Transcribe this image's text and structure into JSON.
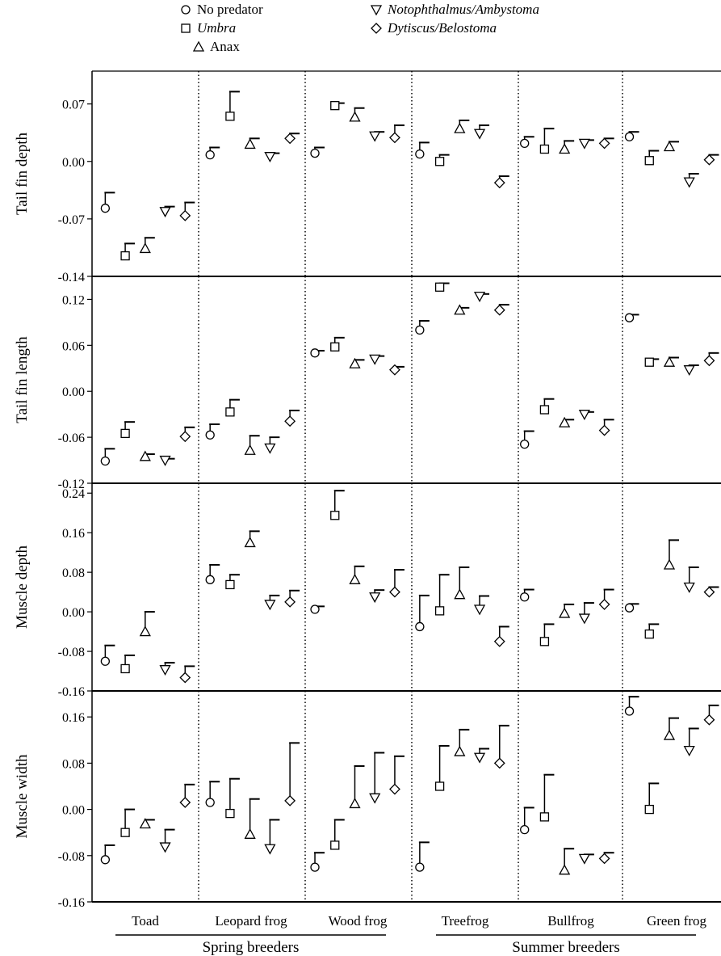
{
  "chart_data": {
    "type": "scatter",
    "legend": {
      "placement": "top-center",
      "items": [
        {
          "name": "No predator",
          "marker": "circle",
          "italic": false
        },
        {
          "name": "Umbra",
          "marker": "square",
          "italic": true
        },
        {
          "name": "Anax",
          "marker": "triangle-up",
          "italic": false
        },
        {
          "name": "Notophthalmus/Ambystoma",
          "marker": "triangle-down",
          "italic": true
        },
        {
          "name": "Dytiscus/Belostoma",
          "marker": "diamond",
          "italic": true
        }
      ]
    },
    "species": [
      "Toad",
      "Leopard frog",
      "Wood frog",
      "Treefrog",
      "Bullfrog",
      "Green frog"
    ],
    "groups": [
      {
        "label": "Spring breeders",
        "species": [
          "Toad",
          "Leopard frog",
          "Wood frog"
        ]
      },
      {
        "label": "Summer breeders",
        "species": [
          "Treefrog",
          "Bullfrog",
          "Green frog"
        ]
      }
    ],
    "error_bars": "upper",
    "grid": false,
    "panels": [
      {
        "ylabel": "Tail fin depth",
        "ylim": [
          -0.14,
          0.11
        ],
        "yticks": [
          "0.07",
          "0.00",
          "-0.07",
          "-0.14"
        ],
        "ytick_values": [
          0.07,
          0.0,
          -0.07,
          -0.14
        ],
        "values": {
          "Toad": [
            -0.057,
            -0.115,
            -0.106,
            -0.061,
            -0.066
          ],
          "Leopard frog": [
            0.008,
            0.055,
            0.021,
            0.006,
            0.028
          ],
          "Wood frog": [
            0.01,
            0.068,
            0.054,
            0.031,
            0.029
          ],
          "Treefrog": [
            0.009,
            0.0,
            0.04,
            0.034,
            -0.026
          ],
          "Bullfrog": [
            0.022,
            0.015,
            0.015,
            0.022,
            0.022
          ],
          "Green frog": [
            0.03,
            0.001,
            0.018,
            -0.025,
            0.002
          ]
        },
        "upper": {
          "Toad": [
            -0.038,
            -0.1,
            -0.093,
            -0.055,
            -0.05
          ],
          "Leopard frog": [
            0.017,
            0.085,
            0.028,
            0.01,
            0.034
          ],
          "Wood frog": [
            0.017,
            0.071,
            0.065,
            0.036,
            0.044
          ],
          "Treefrog": [
            0.023,
            0.008,
            0.05,
            0.044,
            -0.018
          ],
          "Bullfrog": [
            0.03,
            0.04,
            0.025,
            0.026,
            0.028
          ],
          "Green frog": [
            0.036,
            0.013,
            0.024,
            -0.015,
            0.008
          ]
        }
      },
      {
        "ylabel": "Tail fin length",
        "ylim": [
          -0.12,
          0.15
        ],
        "yticks": [
          "0.12",
          "0.06",
          "0.00",
          "-0.06",
          "-0.12"
        ],
        "ytick_values": [
          0.12,
          0.06,
          0.0,
          -0.06,
          -0.12
        ],
        "values": {
          "Toad": [
            -0.091,
            -0.055,
            -0.085,
            -0.09,
            -0.059
          ],
          "Leopard frog": [
            -0.057,
            -0.027,
            -0.077,
            -0.074,
            -0.039
          ],
          "Wood frog": [
            0.05,
            0.058,
            0.036,
            0.042,
            0.028
          ],
          "Treefrog": [
            0.08,
            0.136,
            0.106,
            0.124,
            0.106
          ],
          "Bullfrog": [
            -0.069,
            -0.024,
            -0.041,
            -0.03,
            -0.051
          ],
          "Green frog": [
            0.096,
            0.038,
            0.038,
            0.028,
            0.04
          ]
        },
        "upper": {
          "Toad": [
            -0.075,
            -0.04,
            -0.082,
            -0.088,
            -0.047
          ],
          "Leopard frog": [
            -0.043,
            -0.011,
            -0.058,
            -0.06,
            -0.025
          ],
          "Wood frog": [
            0.053,
            0.07,
            0.041,
            0.046,
            0.032
          ],
          "Treefrog": [
            0.092,
            0.141,
            0.109,
            0.127,
            0.113
          ],
          "Bullfrog": [
            -0.052,
            -0.01,
            -0.037,
            -0.027,
            -0.037
          ],
          "Green frog": [
            0.1,
            0.042,
            0.044,
            0.034,
            0.05
          ]
        }
      },
      {
        "ylabel": "Muscle depth",
        "ylim": [
          -0.16,
          0.26
        ],
        "yticks": [
          "0.24",
          "0.16",
          "0.08",
          "0.00",
          "-0.08",
          "-0.16"
        ],
        "ytick_values": [
          0.24,
          0.16,
          0.08,
          0.0,
          -0.08,
          -0.16
        ],
        "values": {
          "Toad": [
            -0.1,
            -0.115,
            -0.04,
            -0.117,
            -0.133
          ],
          "Leopard frog": [
            0.065,
            0.055,
            0.14,
            0.015,
            0.02
          ],
          "Wood frog": [
            0.005,
            0.195,
            0.065,
            0.03,
            0.04
          ],
          "Treefrog": [
            -0.03,
            0.002,
            0.035,
            0.005,
            -0.06
          ],
          "Bullfrog": [
            0.03,
            -0.06,
            -0.003,
            -0.013,
            0.015
          ],
          "Green frog": [
            0.008,
            -0.045,
            0.095,
            0.05,
            0.04
          ]
        },
        "upper": {
          "Toad": [
            -0.068,
            -0.088,
            0.0,
            -0.103,
            -0.11
          ],
          "Leopard frog": [
            0.095,
            0.075,
            0.163,
            0.033,
            0.043
          ],
          "Wood frog": [
            0.011,
            0.245,
            0.092,
            0.044,
            0.085
          ],
          "Treefrog": [
            0.033,
            0.075,
            0.09,
            0.032,
            -0.03
          ],
          "Bullfrog": [
            0.045,
            -0.025,
            0.015,
            0.018,
            0.045
          ],
          "Green frog": [
            0.016,
            -0.025,
            0.145,
            0.09,
            0.05
          ]
        }
      },
      {
        "ylabel": "Muscle width",
        "ylim": [
          -0.16,
          0.205
        ],
        "yticks": [
          "0.16",
          "0.08",
          "0.00",
          "-0.08",
          "-0.16"
        ],
        "ytick_values": [
          0.16,
          0.08,
          0.0,
          -0.08,
          -0.16
        ],
        "values": {
          "Toad": [
            -0.087,
            -0.04,
            -0.025,
            -0.065,
            0.012
          ],
          "Leopard frog": [
            0.012,
            -0.007,
            -0.043,
            -0.068,
            0.015
          ],
          "Wood frog": [
            -0.1,
            -0.062,
            0.01,
            0.02,
            0.035
          ],
          "Treefrog": [
            -0.1,
            0.04,
            0.1,
            0.09,
            0.08
          ],
          "Bullfrog": [
            -0.035,
            -0.013,
            -0.105,
            -0.085,
            -0.085
          ],
          "Green frog": [
            0.17,
            0.0,
            0.128,
            0.102,
            0.155
          ]
        },
        "upper": {
          "Toad": [
            -0.062,
            0.0,
            -0.018,
            -0.035,
            0.043
          ],
          "Leopard frog": [
            0.048,
            0.053,
            0.018,
            -0.018,
            0.115
          ],
          "Wood frog": [
            -0.075,
            -0.018,
            0.075,
            0.098,
            0.092
          ],
          "Treefrog": [
            -0.057,
            0.11,
            0.138,
            0.105,
            0.145
          ],
          "Bullfrog": [
            0.003,
            0.06,
            -0.068,
            -0.078,
            -0.075
          ],
          "Green frog": [
            0.195,
            0.045,
            0.158,
            0.14,
            0.18
          ]
        }
      }
    ]
  }
}
